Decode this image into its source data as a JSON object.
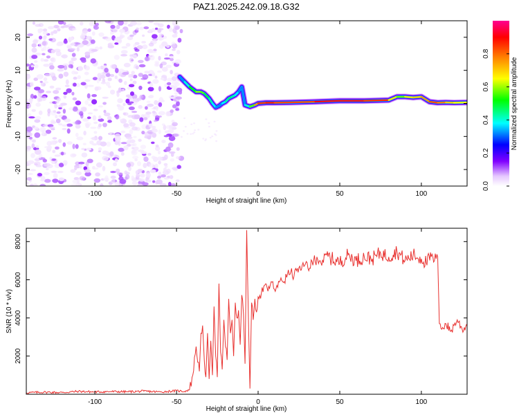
{
  "figure_title": "PAZ1.2025.242.09.18.G32",
  "chart_data": [
    {
      "type": "heatmap",
      "title": "PAZ1.2025.242.09.18.G32",
      "xlabel": "Height of straight line (km)",
      "ylabel": "Frequency (Hz)",
      "xlim": [
        -142,
        128
      ],
      "ylim": [
        -25,
        25
      ],
      "xticks": [
        -100,
        -50,
        0,
        50,
        100
      ],
      "xtick_labels": [
        "-100",
        "-50",
        "0",
        "50",
        "100"
      ],
      "yticks": [
        -20,
        -10,
        0,
        10,
        20
      ],
      "ytick_labels": [
        "-20",
        "-10",
        "0",
        "10",
        "20"
      ],
      "noise_region_x": [
        -142,
        -47
      ],
      "ridge": {
        "description": "spectral peak frequency vs height",
        "x": [
          -48,
          -45,
          -42,
          -38,
          -35,
          -33,
          -30,
          -28,
          -26,
          -24,
          -22,
          -20,
          -18,
          -16,
          -14,
          -12,
          -10,
          -8,
          -5,
          -2,
          0,
          5,
          10,
          20,
          35,
          50,
          65,
          80,
          85,
          90,
          95,
          100,
          105,
          110,
          115,
          120,
          128
        ],
        "frequency_hz": [
          8,
          6.5,
          5,
          3.5,
          3.5,
          3,
          1.5,
          0,
          -1.2,
          -0.8,
          0,
          0.5,
          1.5,
          2,
          2.5,
          3.5,
          5,
          -0.5,
          -1,
          -0.5,
          0,
          0.2,
          0.2,
          0.3,
          0.5,
          0.8,
          0.8,
          1,
          2,
          2,
          1.8,
          2,
          0.5,
          0.2,
          0.3,
          0.2,
          0.3
        ],
        "amplitude": [
          0.4,
          0.45,
          0.55,
          0.65,
          0.7,
          0.6,
          0.55,
          0.5,
          0.45,
          0.4,
          0.45,
          0.5,
          0.55,
          0.55,
          0.5,
          0.45,
          0.4,
          0.45,
          0.55,
          0.75,
          0.9,
          0.95,
          0.95,
          0.85,
          0.95,
          1,
          0.95,
          0.9,
          0.6,
          0.7,
          0.8,
          0.75,
          0.9,
          0.9,
          0.8,
          0.75,
          0.7
        ]
      },
      "colorbar": {
        "label": "Normalized spectral amplitude",
        "range": [
          0,
          1
        ],
        "ticks": [
          0.0,
          0.2,
          0.4,
          0.6,
          0.8
        ],
        "tick_labels": [
          "0.0",
          "0.2",
          "0.4",
          "0.6",
          "0.8"
        ],
        "colormap": [
          "#ffffff",
          "#e6c8ff",
          "#8000ff",
          "#0000ff",
          "#00ffff",
          "#00ff00",
          "#ffff00",
          "#ff8000",
          "#ff0000",
          "#ff00a0"
        ]
      }
    },
    {
      "type": "line",
      "xlabel": "Height of straight line (km)",
      "ylabel": "SNR (10 * v/v)",
      "xlim": [
        -142,
        128
      ],
      "ylim": [
        0,
        8700
      ],
      "xticks": [
        -100,
        -50,
        0,
        50,
        100
      ],
      "xtick_labels": [
        "-100",
        "-50",
        "0",
        "50",
        "100"
      ],
      "yticks": [
        2000,
        4000,
        6000,
        8000
      ],
      "ytick_labels": [
        "2000",
        "4000",
        "6000",
        "8000"
      ],
      "color": "#e8302e",
      "series": [
        {
          "name": "SNR",
          "x": [
            -142,
            -130,
            -120,
            -110,
            -100,
            -90,
            -80,
            -70,
            -60,
            -50,
            -45,
            -42,
            -40,
            -38,
            -36,
            -35,
            -34,
            -33,
            -32,
            -31,
            -30,
            -29,
            -28,
            -27,
            -26,
            -25,
            -24,
            -23,
            -22,
            -21,
            -20,
            -19,
            -18,
            -17,
            -16,
            -15,
            -14,
            -13,
            -12,
            -11,
            -10,
            -9,
            -8,
            -7,
            -6,
            -5,
            -4,
            -3,
            -2,
            -1,
            0,
            2,
            4,
            6,
            8,
            10,
            12,
            14,
            16,
            18,
            20,
            22,
            24,
            26,
            28,
            30,
            32,
            34,
            36,
            38,
            40,
            42,
            45,
            50,
            55,
            60,
            65,
            70,
            75,
            80,
            85,
            90,
            95,
            100,
            103,
            106,
            108,
            109,
            110,
            111,
            113,
            115,
            118,
            120,
            122,
            125,
            128
          ],
          "y": [
            80,
            110,
            90,
            150,
            120,
            140,
            130,
            160,
            120,
            180,
            150,
            250,
            1000,
            2500,
            1200,
            3200,
            3600,
            1800,
            900,
            3200,
            800,
            2800,
            1000,
            4600,
            2000,
            900,
            5800,
            2200,
            1300,
            3900,
            2500,
            1800,
            5000,
            3200,
            3900,
            2000,
            4800,
            4000,
            4400,
            2600,
            5200,
            4200,
            1600,
            8600,
            4100,
            300,
            4800,
            3900,
            5000,
            4300,
            5100,
            5300,
            5700,
            5400,
            5900,
            5500,
            5600,
            6100,
            5900,
            6300,
            6400,
            6200,
            6600,
            6500,
            6700,
            6900,
            6600,
            7000,
            7200,
            7000,
            6900,
            7300,
            7100,
            6900,
            7300,
            7000,
            7200,
            7100,
            7400,
            7200,
            7500,
            7000,
            7300,
            7100,
            6900,
            7200,
            7000,
            7100,
            7200,
            3700,
            3500,
            3700,
            3300,
            3600,
            3900,
            3400,
            3600
          ]
        }
      ]
    }
  ]
}
